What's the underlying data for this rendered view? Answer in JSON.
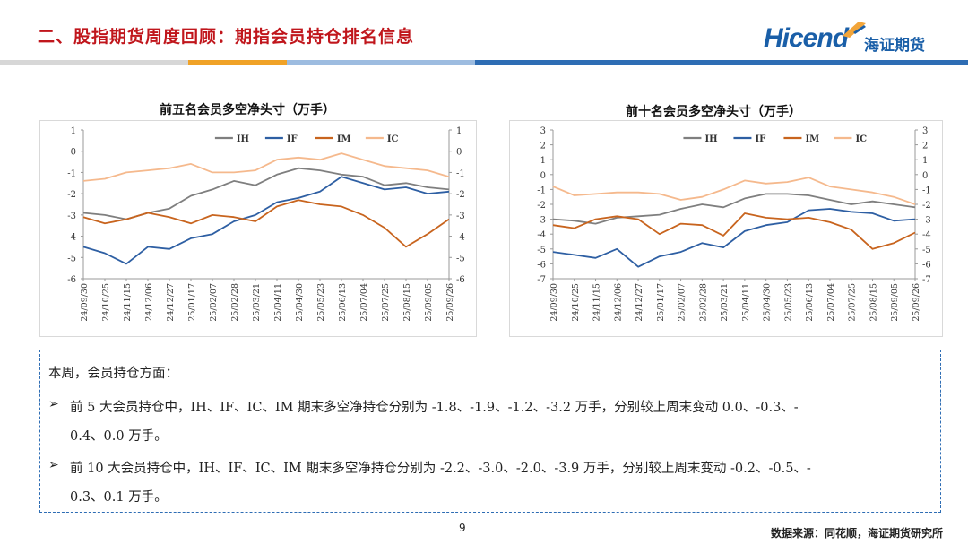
{
  "header": {
    "title": "二、股指期货周度回顾：期指会员持仓排名信息",
    "logo_latin": "Hicend",
    "logo_cn": "海证期货"
  },
  "colors": {
    "IH": "#7f7f7f",
    "IF": "#2e5fa3",
    "IM": "#c8641e",
    "IC": "#f5b98d",
    "title_red": "#c0161c",
    "brand_blue": "#1a5fa8"
  },
  "chart_data": [
    {
      "type": "line",
      "title": "前五名会员多空净头寸（万手）",
      "legend": [
        "IH",
        "IF",
        "IM",
        "IC"
      ],
      "legend_position": "top",
      "x": [
        "24/09/30",
        "24/10/25",
        "24/11/15",
        "24/12/06",
        "24/12/27",
        "25/01/17",
        "25/02/07",
        "25/02/28",
        "25/03/21",
        "25/04/11",
        "25/04/30",
        "25/05/23",
        "25/06/13",
        "25/07/04",
        "25/07/25",
        "25/08/15",
        "25/09/05",
        "25/09/26"
      ],
      "ylim_left": [
        -6,
        1
      ],
      "ylim_right": [
        -6,
        1
      ],
      "series": [
        {
          "name": "IH",
          "values": [
            -2.9,
            -3.0,
            -3.2,
            -2.9,
            -2.7,
            -2.1,
            -1.8,
            -1.4,
            -1.6,
            -1.1,
            -0.8,
            -0.9,
            -1.1,
            -1.2,
            -1.6,
            -1.5,
            -1.7,
            -1.8
          ]
        },
        {
          "name": "IF",
          "values": [
            -4.5,
            -4.8,
            -5.3,
            -4.5,
            -4.6,
            -4.1,
            -3.9,
            -3.3,
            -3.0,
            -2.4,
            -2.2,
            -1.9,
            -1.2,
            -1.5,
            -1.8,
            -1.7,
            -2.0,
            -1.9
          ]
        },
        {
          "name": "IM",
          "values": [
            -3.1,
            -3.4,
            -3.2,
            -2.9,
            -3.1,
            -3.4,
            -3.0,
            -3.1,
            -3.3,
            -2.6,
            -2.3,
            -2.5,
            -2.6,
            -3.0,
            -3.6,
            -4.5,
            -3.9,
            -3.2
          ]
        },
        {
          "name": "IC",
          "values": [
            -1.4,
            -1.3,
            -1.0,
            -0.9,
            -0.8,
            -0.6,
            -1.0,
            -1.0,
            -0.9,
            -0.4,
            -0.3,
            -0.4,
            -0.1,
            -0.4,
            -0.7,
            -0.8,
            -0.9,
            -1.2
          ]
        }
      ]
    },
    {
      "type": "line",
      "title": "前十名会员多空净头寸（万手）",
      "legend": [
        "IH",
        "IF",
        "IM",
        "IC"
      ],
      "legend_position": "top",
      "x": [
        "24/09/30",
        "24/10/25",
        "24/11/15",
        "24/12/06",
        "24/12/27",
        "25/01/17",
        "25/02/07",
        "25/02/28",
        "25/03/21",
        "25/04/11",
        "25/04/30",
        "25/05/23",
        "25/06/13",
        "25/07/04",
        "25/07/25",
        "25/08/15",
        "25/09/05",
        "25/09/26"
      ],
      "ylim_left": [
        -7,
        3
      ],
      "ylim_right": [
        -7,
        3
      ],
      "series": [
        {
          "name": "IH",
          "values": [
            -3.0,
            -3.1,
            -3.3,
            -2.9,
            -2.8,
            -2.7,
            -2.3,
            -2.0,
            -2.2,
            -1.6,
            -1.3,
            -1.3,
            -1.4,
            -1.7,
            -2.0,
            -1.8,
            -2.0,
            -2.2
          ]
        },
        {
          "name": "IF",
          "values": [
            -5.2,
            -5.4,
            -5.6,
            -5.0,
            -6.2,
            -5.5,
            -5.2,
            -4.6,
            -4.9,
            -3.8,
            -3.4,
            -3.2,
            -2.4,
            -2.3,
            -2.5,
            -2.6,
            -3.1,
            -3.0
          ]
        },
        {
          "name": "IM",
          "values": [
            -3.4,
            -3.6,
            -3.0,
            -2.8,
            -3.0,
            -4.0,
            -3.3,
            -3.4,
            -4.1,
            -2.6,
            -2.9,
            -3.0,
            -2.9,
            -3.2,
            -3.7,
            -5.0,
            -4.6,
            -3.9
          ]
        },
        {
          "name": "IC",
          "values": [
            -0.8,
            -1.4,
            -1.3,
            -1.2,
            -1.2,
            -1.3,
            -1.7,
            -1.5,
            -1.0,
            -0.4,
            -0.6,
            -0.5,
            -0.2,
            -0.8,
            -1.0,
            -1.2,
            -1.5,
            -2.0
          ]
        }
      ]
    }
  ],
  "summary": {
    "intro": "本周，会员持仓方面：",
    "bullet_icon": "arrow-bullet-icon",
    "bullets": [
      {
        "line1": "前 5 大会员持仓中，IH、IF、IC、IM 期末多空净持仓分别为 -1.8、-1.9、-1.2、-3.2 万手，分别较上周末变动 0.0、-0.3、-",
        "line2": "0.4、0.0 万手。"
      },
      {
        "line1": "前 10 大会员持仓中，IH、IF、IC、IM 期末多空净持仓分别为 -2.2、-3.0、-2.0、-3.9 万手，分别较上周末变动 -0.2、-0.5、-",
        "line2": "0.3、0.1 万手。"
      }
    ]
  },
  "footer": {
    "page_number": "9",
    "source": "数据来源：同花顺，海证期货研究所"
  }
}
